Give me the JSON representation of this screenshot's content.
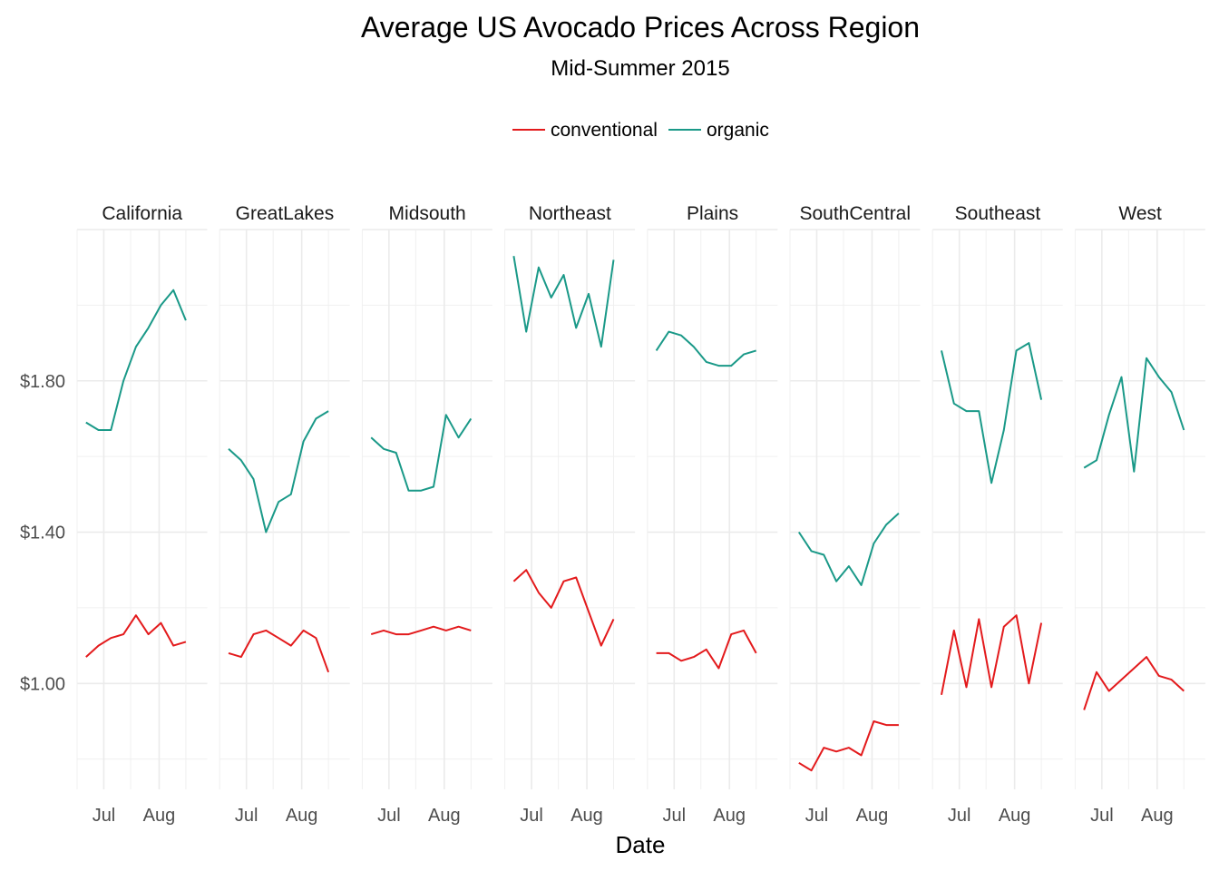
{
  "chart_data": {
    "type": "line",
    "title": "Average US Avocado Prices Across Region",
    "subtitle": "Mid-Summer 2015",
    "xlabel": "Date",
    "ylabel": "",
    "x_ticks": [
      "Jul",
      "Aug"
    ],
    "y_ticks": [
      "$1.00",
      "$1.40",
      "$1.80"
    ],
    "y_tick_values": [
      1.0,
      1.4,
      1.8
    ],
    "ylim": [
      0.72,
      2.2
    ],
    "legend": {
      "position": "top",
      "entries": [
        "conventional",
        "organic"
      ]
    },
    "grid": true,
    "colors": {
      "conventional": "#e31a1c",
      "organic": "#1a9988"
    },
    "dates": [
      "2015-06-21",
      "2015-06-28",
      "2015-07-05",
      "2015-07-12",
      "2015-07-19",
      "2015-07-26",
      "2015-08-02",
      "2015-08-09",
      "2015-08-16",
      "2015-08-23"
    ],
    "date_range": [
      "2015-06-16",
      "2015-08-28"
    ],
    "panels": [
      {
        "region": "California",
        "series": [
          {
            "name": "organic",
            "values": [
              1.69,
              1.67,
              1.67,
              1.8,
              1.89,
              1.94,
              2.0,
              2.04,
              1.96,
              null
            ]
          },
          {
            "name": "conventional",
            "values": [
              1.07,
              1.1,
              1.12,
              1.13,
              1.18,
              1.13,
              1.16,
              1.1,
              1.11,
              null
            ]
          }
        ]
      },
      {
        "region": "GreatLakes",
        "series": [
          {
            "name": "organic",
            "values": [
              1.62,
              1.59,
              1.54,
              1.4,
              1.48,
              1.5,
              1.64,
              1.7,
              1.72,
              null
            ]
          },
          {
            "name": "conventional",
            "values": [
              1.08,
              1.07,
              1.13,
              1.14,
              1.12,
              1.1,
              1.14,
              1.12,
              1.03,
              null
            ]
          }
        ]
      },
      {
        "region": "Midsouth",
        "series": [
          {
            "name": "organic",
            "values": [
              1.65,
              1.62,
              1.61,
              1.51,
              1.51,
              1.52,
              1.71,
              1.65,
              1.7,
              null
            ]
          },
          {
            "name": "conventional",
            "values": [
              1.13,
              1.14,
              1.13,
              1.13,
              1.14,
              1.15,
              1.14,
              1.15,
              1.14,
              null
            ]
          }
        ]
      },
      {
        "region": "Northeast",
        "series": [
          {
            "name": "organic",
            "values": [
              2.13,
              1.93,
              2.1,
              2.02,
              2.08,
              1.94,
              2.03,
              1.89,
              2.12,
              null
            ]
          },
          {
            "name": "conventional",
            "values": [
              1.27,
              1.3,
              1.24,
              1.2,
              1.27,
              1.28,
              1.19,
              1.1,
              1.17,
              null
            ]
          }
        ]
      },
      {
        "region": "Plains",
        "series": [
          {
            "name": "organic",
            "values": [
              1.88,
              1.93,
              1.92,
              1.89,
              1.85,
              1.84,
              1.84,
              1.87,
              1.88,
              null
            ]
          },
          {
            "name": "conventional",
            "values": [
              1.08,
              1.08,
              1.06,
              1.07,
              1.09,
              1.04,
              1.13,
              1.14,
              1.08,
              null
            ]
          }
        ]
      },
      {
        "region": "SouthCentral",
        "series": [
          {
            "name": "organic",
            "values": [
              1.4,
              1.35,
              1.34,
              1.27,
              1.31,
              1.26,
              1.37,
              1.42,
              1.45,
              null
            ]
          },
          {
            "name": "conventional",
            "values": [
              0.79,
              0.77,
              0.83,
              0.82,
              0.83,
              0.81,
              0.9,
              0.89,
              0.89,
              null
            ]
          }
        ]
      },
      {
        "region": "Southeast",
        "series": [
          {
            "name": "organic",
            "values": [
              1.88,
              1.74,
              1.72,
              1.72,
              1.53,
              1.67,
              1.88,
              1.9,
              1.75,
              null
            ]
          },
          {
            "name": "conventional",
            "values": [
              0.97,
              1.14,
              0.99,
              1.17,
              0.99,
              1.15,
              1.18,
              1.0,
              1.16,
              null
            ]
          }
        ]
      },
      {
        "region": "West",
        "series": [
          {
            "name": "organic",
            "values": [
              1.57,
              1.59,
              1.71,
              1.81,
              1.56,
              1.86,
              1.81,
              1.77,
              1.67,
              null
            ]
          },
          {
            "name": "conventional",
            "values": [
              0.93,
              1.03,
              0.98,
              null,
              null,
              1.07,
              1.02,
              1.01,
              0.98,
              null
            ]
          }
        ]
      }
    ]
  }
}
